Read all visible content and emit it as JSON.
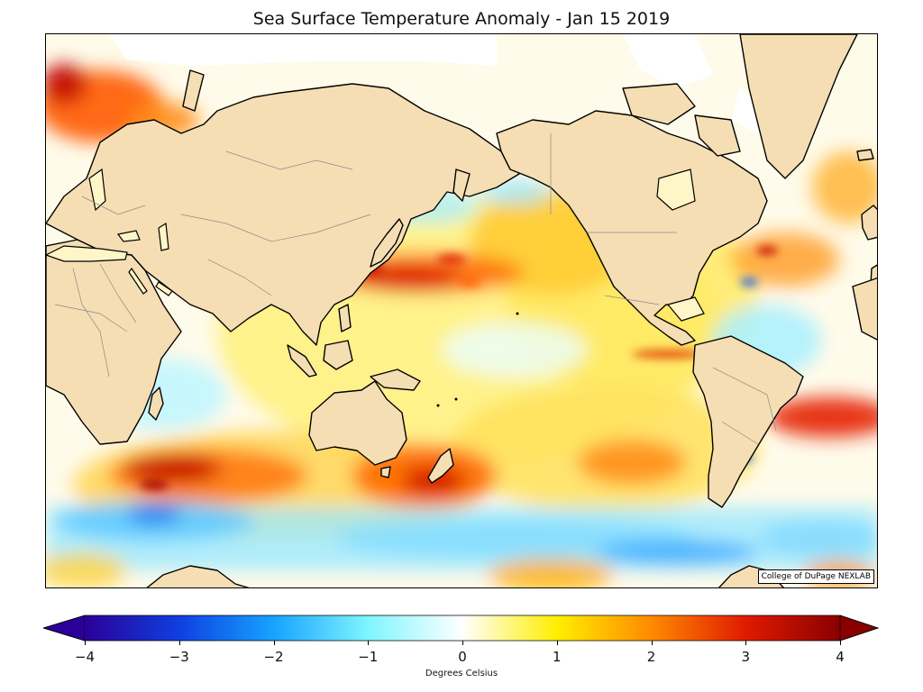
{
  "title": "Sea Surface Temperature Anomaly - Jan 15 2019",
  "credit": "College of DuPage NEXLAB",
  "colorbar": {
    "label": "Degrees Celsius",
    "ticks": [
      "−4",
      "−3",
      "−2",
      "−1",
      "0",
      "1",
      "2",
      "3",
      "4"
    ],
    "range": [
      -4,
      4
    ],
    "colors": [
      "#2a0098",
      "#0f3fe0",
      "#16a3ff",
      "#7ff5ff",
      "#ffffff",
      "#ffee00",
      "#ff8a00",
      "#e01a00",
      "#8a0000"
    ],
    "extend": "both"
  },
  "map": {
    "projection": "equirectangular, Pacific-centered",
    "land_color": "#f5deb3",
    "notable_anomalies": [
      {
        "region": "Northeast Pacific",
        "sign": "warm"
      },
      {
        "region": "Kuroshio extension",
        "sign": "warm"
      },
      {
        "region": "Southern Indian Ocean",
        "sign": "warm"
      },
      {
        "region": "Tasman Sea",
        "sign": "warm"
      },
      {
        "region": "South Atlantic off Argentina",
        "sign": "warm"
      },
      {
        "region": "Southern Ocean",
        "sign": "cool"
      },
      {
        "region": "Tropical Atlantic",
        "sign": "cool"
      }
    ]
  }
}
